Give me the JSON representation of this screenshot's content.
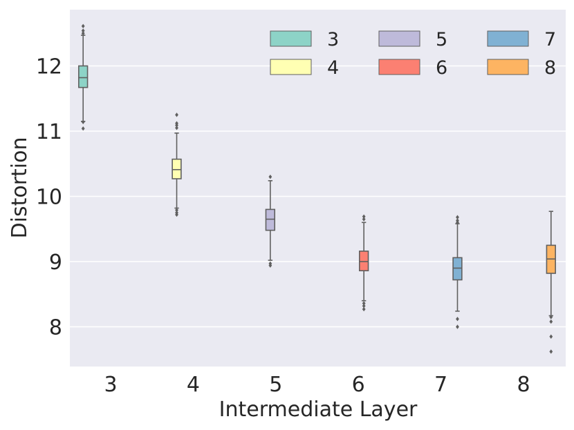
{
  "chart_data": {
    "type": "box",
    "xlabel": "Intermediate Layer",
    "ylabel": "Distortion",
    "ylim": [
      7.4,
      12.8
    ],
    "yticks": [
      8,
      9,
      10,
      11,
      12
    ],
    "grid": true,
    "legend_placement": "top-right",
    "categories": [
      "3",
      "4",
      "5",
      "6",
      "7",
      "8"
    ],
    "series": [
      {
        "name": "3",
        "color": "#8dd3c7",
        "category": "3",
        "whisker_low": 11.15,
        "q1": 11.67,
        "median": 11.82,
        "q3": 12.0,
        "whisker_high": 12.47,
        "outliers": [
          11.04,
          11.14,
          12.5,
          12.54,
          12.61
        ]
      },
      {
        "name": "4",
        "color": "#ffffb3",
        "category": "4",
        "whisker_low": 9.82,
        "q1": 10.27,
        "median": 10.41,
        "q3": 10.57,
        "whisker_high": 10.97,
        "outliers": [
          9.72,
          9.75,
          9.79,
          11.05,
          11.09,
          11.12,
          11.25
        ]
      },
      {
        "name": "5",
        "color": "#bebada",
        "category": "5",
        "whisker_low": 9.02,
        "q1": 9.48,
        "median": 9.65,
        "q3": 9.8,
        "whisker_high": 10.24,
        "outliers": [
          8.94,
          8.97,
          10.3
        ]
      },
      {
        "name": "6",
        "color": "#fb8072",
        "category": "6",
        "whisker_low": 8.4,
        "q1": 8.86,
        "median": 9.0,
        "q3": 9.16,
        "whisker_high": 9.6,
        "outliers": [
          8.27,
          8.32,
          8.36,
          9.65,
          9.69
        ]
      },
      {
        "name": "7",
        "color": "#80b1d3",
        "category": "7",
        "whisker_low": 8.24,
        "q1": 8.72,
        "median": 8.9,
        "q3": 9.06,
        "whisker_high": 9.58,
        "outliers": [
          8.0,
          8.12,
          9.6,
          9.63,
          9.68
        ]
      },
      {
        "name": "8",
        "color": "#fdb462",
        "category": "8",
        "whisker_low": 8.17,
        "q1": 8.82,
        "median": 9.04,
        "q3": 9.25,
        "whisker_high": 9.77,
        "outliers": [
          7.62,
          7.85,
          8.08,
          8.15
        ]
      }
    ]
  }
}
